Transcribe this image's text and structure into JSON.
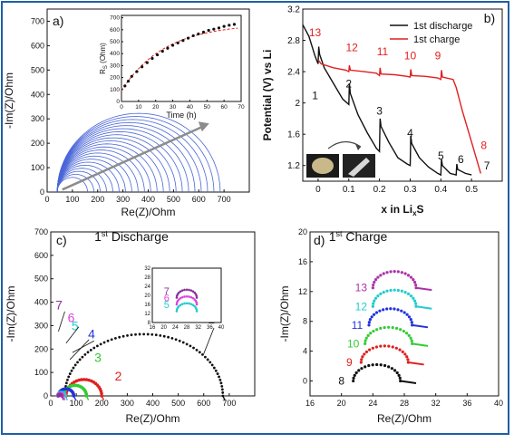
{
  "chart_data": [
    {
      "panel": "a)",
      "type": "line",
      "xlabel": "Re(Z)/Ohm",
      "ylabel": "-Im(Z)/Ohm",
      "xlim": [
        0,
        800
      ],
      "ylim": [
        0,
        750
      ],
      "xticks": [
        0,
        100,
        200,
        300,
        400,
        500,
        600,
        700
      ],
      "yticks": [
        0,
        100,
        200,
        300,
        400,
        500,
        600,
        700
      ],
      "series_description": "family of Nyquist semicircles (blue), diameters growing with time",
      "semicircles": [
        {
          "start": 40,
          "end": 160
        },
        {
          "start": 40,
          "end": 185
        },
        {
          "start": 40,
          "end": 210
        },
        {
          "start": 40,
          "end": 235
        },
        {
          "start": 40,
          "end": 260
        },
        {
          "start": 40,
          "end": 285
        },
        {
          "start": 40,
          "end": 310
        },
        {
          "start": 40,
          "end": 335
        },
        {
          "start": 40,
          "end": 360
        },
        {
          "start": 40,
          "end": 385
        },
        {
          "start": 40,
          "end": 410
        },
        {
          "start": 40,
          "end": 435
        },
        {
          "start": 40,
          "end": 460
        },
        {
          "start": 40,
          "end": 485
        },
        {
          "start": 40,
          "end": 510
        },
        {
          "start": 40,
          "end": 535
        },
        {
          "start": 40,
          "end": 560
        },
        {
          "start": 40,
          "end": 585
        },
        {
          "start": 40,
          "end": 610
        },
        {
          "start": 40,
          "end": 635
        },
        {
          "start": 40,
          "end": 660
        },
        {
          "start": 40,
          "end": 685
        }
      ],
      "arrow": {
        "from": [
          60,
          10
        ],
        "to": [
          620,
          270
        ]
      },
      "colors": {
        "curves": "#4a66d8",
        "arrow": "#8c8c8c"
      },
      "inset": {
        "type": "scatter",
        "xlabel": "Time (h)",
        "ylabel": "RS (Ohm)",
        "xlim": [
          0,
          70
        ],
        "ylim": [
          0,
          720
        ],
        "xticks": [
          0,
          10,
          20,
          30,
          40,
          50,
          60,
          70
        ],
        "yticks": [
          0,
          100,
          200,
          300,
          400,
          500,
          600,
          700
        ],
        "x": [
          2,
          4,
          6,
          9,
          12,
          15,
          18,
          21,
          24,
          27,
          30,
          33,
          36,
          39,
          42,
          45,
          48,
          51,
          54,
          57,
          60,
          63,
          66
        ],
        "y": [
          130,
          170,
          210,
          250,
          290,
          325,
          360,
          390,
          420,
          445,
          470,
          490,
          510,
          530,
          550,
          565,
          580,
          595,
          605,
          615,
          628,
          638,
          645
        ],
        "colors": {
          "points": "#111111",
          "fit": "#e02020"
        }
      }
    },
    {
      "panel": "b)",
      "type": "line",
      "xlabel": "x in LixS",
      "ylabel": "Potential (V) vs Li",
      "xlim": [
        -0.05,
        0.6
      ],
      "ylim": [
        1.0,
        3.2
      ],
      "xticks": [
        0.0,
        0.1,
        0.2,
        0.3,
        0.4,
        0.5
      ],
      "yticks": [
        1.2,
        1.6,
        2.0,
        2.4,
        2.8,
        3.2
      ],
      "series": [
        {
          "name": "1st discharge",
          "color": "#111111",
          "x": [
            -0.05,
            -0.03,
            -0.01,
            0.0,
            0.002,
            0.005,
            0.02,
            0.05,
            0.08,
            0.1,
            0.102,
            0.105,
            0.13,
            0.16,
            0.19,
            0.2,
            0.202,
            0.205,
            0.23,
            0.26,
            0.29,
            0.3,
            0.302,
            0.305,
            0.33,
            0.36,
            0.39,
            0.4,
            0.402,
            0.405,
            0.43,
            0.45,
            0.452,
            0.455,
            0.48,
            0.5
          ],
          "y": [
            3.0,
            2.85,
            2.6,
            2.5,
            2.72,
            2.62,
            2.45,
            2.25,
            2.05,
            1.98,
            2.25,
            2.12,
            1.85,
            1.62,
            1.42,
            1.38,
            1.8,
            1.7,
            1.5,
            1.3,
            1.22,
            1.2,
            1.58,
            1.48,
            1.3,
            1.18,
            1.1,
            1.08,
            1.28,
            1.2,
            1.1,
            1.08,
            1.22,
            1.15,
            1.1,
            1.08
          ]
        },
        {
          "name": "1st charge",
          "color": "#e02020",
          "x": [
            0.0,
            0.01,
            0.05,
            0.09,
            0.1,
            0.102,
            0.105,
            0.15,
            0.19,
            0.2,
            0.202,
            0.205,
            0.25,
            0.29,
            0.3,
            0.302,
            0.305,
            0.35,
            0.39,
            0.4,
            0.402,
            0.405,
            0.44,
            0.45,
            0.47,
            0.5,
            0.53
          ],
          "y": [
            2.55,
            2.5,
            2.45,
            2.42,
            2.4,
            2.48,
            2.42,
            2.4,
            2.38,
            2.35,
            2.45,
            2.37,
            2.36,
            2.34,
            2.33,
            2.43,
            2.35,
            2.34,
            2.32,
            2.3,
            2.42,
            2.33,
            2.3,
            2.2,
            1.9,
            1.5,
            1.1
          ]
        }
      ],
      "labels": [
        {
          "text": "1",
          "x": -0.01,
          "y": 2.05,
          "color": "#111111"
        },
        {
          "text": "2",
          "x": 0.1,
          "y": 2.2,
          "color": "#111111"
        },
        {
          "text": "3",
          "x": 0.2,
          "y": 1.85,
          "color": "#111111"
        },
        {
          "text": "4",
          "x": 0.3,
          "y": 1.57,
          "color": "#111111"
        },
        {
          "text": "5",
          "x": 0.4,
          "y": 1.28,
          "color": "#111111"
        },
        {
          "text": "6",
          "x": 0.465,
          "y": 1.23,
          "color": "#111111"
        },
        {
          "text": "7",
          "x": 0.55,
          "y": 1.15,
          "color": "#111111"
        },
        {
          "text": "8",
          "x": 0.54,
          "y": 1.41,
          "color": "#e02020"
        },
        {
          "text": "9",
          "x": 0.39,
          "y": 2.56,
          "color": "#e02020"
        },
        {
          "text": "10",
          "x": 0.3,
          "y": 2.56,
          "color": "#e02020"
        },
        {
          "text": "11",
          "x": 0.21,
          "y": 2.61,
          "color": "#e02020"
        },
        {
          "text": "12",
          "x": 0.11,
          "y": 2.66,
          "color": "#e02020"
        },
        {
          "text": "13",
          "x": -0.01,
          "y": 2.85,
          "color": "#e02020"
        }
      ]
    },
    {
      "panel": "c)",
      "type": "scatter",
      "title": "1st Discharge",
      "xlabel": "Re(Z)/Ohm",
      "ylabel": "-Im(Z)/Ohm",
      "xlim": [
        0,
        800
      ],
      "ylim": [
        0,
        700
      ],
      "xticks": [
        0,
        100,
        200,
        300,
        400,
        500,
        600,
        700
      ],
      "yticks": [
        0,
        100,
        200,
        300,
        400,
        500,
        600,
        700
      ],
      "series": [
        {
          "label": "1",
          "color": "#111111",
          "center": 365,
          "radius": 310,
          "start": 55
        },
        {
          "label": "2",
          "color": "#e02020",
          "center": 130,
          "radius": 70,
          "start": 60
        },
        {
          "label": "3",
          "color": "#33cc33",
          "center": 95,
          "radius": 45,
          "start": 50
        },
        {
          "label": "4",
          "color": "#2233dd",
          "center": 60,
          "radius": 30,
          "start": 30
        },
        {
          "label": "5",
          "color": "#22cccc",
          "center": 42,
          "radius": 15,
          "start": 27
        },
        {
          "label": "6",
          "color": "#dd44dd",
          "center": 38,
          "radius": 10,
          "start": 28
        },
        {
          "label": "7",
          "color": "#883399",
          "center": 36,
          "radius": 6,
          "start": 30
        }
      ],
      "labels": [
        {
          "text": "1",
          "x": 630,
          "y": 310,
          "color": "#111111"
        },
        {
          "text": "2",
          "x": 265,
          "y": 65,
          "color": "#e02020"
        },
        {
          "text": "3",
          "x": 185,
          "y": 145,
          "color": "#33cc33"
        },
        {
          "text": "4",
          "x": 160,
          "y": 245,
          "color": "#2233dd"
        },
        {
          "text": "5",
          "x": 95,
          "y": 280,
          "color": "#22cccc"
        },
        {
          "text": "6",
          "x": 80,
          "y": 315,
          "color": "#dd44dd"
        },
        {
          "text": "7",
          "x": 32,
          "y": 370,
          "color": "#883399"
        }
      ],
      "inset": {
        "xlim": [
          16,
          40
        ],
        "ylim": [
          8,
          32
        ],
        "xticks": [
          16,
          20,
          24,
          28,
          32,
          36,
          40
        ],
        "yticks": [
          8,
          12,
          16,
          20,
          24,
          28,
          32
        ],
        "labels": [
          "5",
          "6",
          "7"
        ]
      }
    },
    {
      "panel": "d)",
      "type": "scatter",
      "title": "1st Charge",
      "xlabel": "Re(Z)/Ohm",
      "ylabel": "-Im(Z)/Ohm",
      "xlim": [
        16,
        40
      ],
      "ylim": [
        -2,
        20
      ],
      "xticks": [
        16,
        20,
        24,
        28,
        32,
        36,
        40
      ],
      "yticks": [
        0,
        4,
        8,
        12,
        16,
        20
      ],
      "series": [
        {
          "label": "8",
          "color": "#111111",
          "offset": 0,
          "start": 21.5,
          "end": 28.5
        },
        {
          "label": "9",
          "color": "#e02020",
          "offset": 2.5,
          "start": 22.5,
          "end": 29.5
        },
        {
          "label": "10",
          "color": "#33cc33",
          "offset": 5.0,
          "start": 23.0,
          "end": 30.0
        },
        {
          "label": "11",
          "color": "#2233dd",
          "offset": 7.5,
          "start": 23.5,
          "end": 30.0
        },
        {
          "label": "12",
          "color": "#22cccc",
          "offset": 10.0,
          "start": 24.0,
          "end": 30.5
        },
        {
          "label": "13",
          "color": "#aa33aa",
          "offset": 12.5,
          "start": 24.0,
          "end": 30.5
        }
      ]
    }
  ],
  "legend_b": {
    "entries": [
      "1st discharge",
      "1st charge"
    ]
  },
  "panel_c_title": {
    "ordinal": "1",
    "sup": "st",
    "rest": " Discharge"
  },
  "panel_d_title": {
    "ordinal": "1",
    "sup": "st",
    "rest": " Charge"
  },
  "b_xlabel": {
    "main": "x in Li",
    "sub": "x",
    "tail": "S"
  },
  "inset_a_ylabel": {
    "main": "R",
    "sub": "S",
    "tail": " (Ohm)"
  }
}
